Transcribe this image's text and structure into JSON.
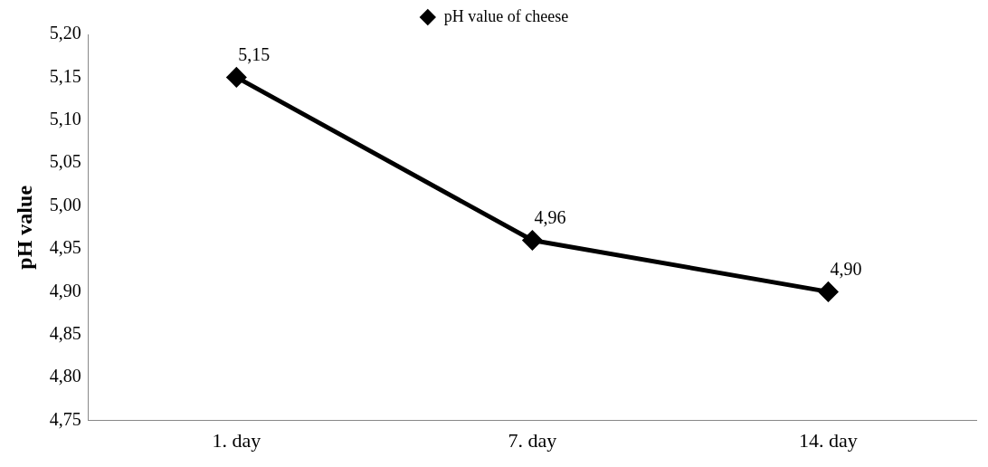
{
  "chart_data": {
    "type": "line",
    "ylabel": "pH value",
    "categories": [
      "1. day",
      "7. day",
      "14. day"
    ],
    "series": [
      {
        "name": "pH value of cheese",
        "color": "#000000",
        "values": [
          5.15,
          4.96,
          4.9
        ],
        "value_labels": [
          "5,15",
          "4,96",
          "4,90"
        ]
      }
    ],
    "ylim": [
      4.75,
      5.2
    ],
    "yticks": [
      {
        "value": 4.75,
        "label": "4,75"
      },
      {
        "value": 4.8,
        "label": "4,80"
      },
      {
        "value": 4.85,
        "label": "4,85"
      },
      {
        "value": 4.9,
        "label": "4,90"
      },
      {
        "value": 4.95,
        "label": "4,95"
      },
      {
        "value": 5.0,
        "label": "5,00"
      },
      {
        "value": 5.05,
        "label": "5,05"
      },
      {
        "value": 5.1,
        "label": "5,10"
      },
      {
        "value": 5.15,
        "label": "5,15"
      },
      {
        "value": 5.2,
        "label": "5,20"
      }
    ],
    "grid": false,
    "legend": "top",
    "marker": "diamond",
    "line_style": "solid"
  }
}
